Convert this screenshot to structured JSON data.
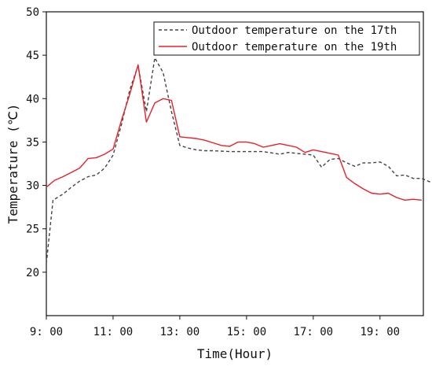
{
  "chart_data": {
    "type": "line",
    "xlabel": "Time(Hour)",
    "ylabel": "Temperature (℃)",
    "xlim": [
      9,
      20.3
    ],
    "ylim": [
      15,
      50
    ],
    "x_ticks": [
      {
        "value": 9,
        "label": "9: 00"
      },
      {
        "value": 11,
        "label": "11: 00"
      },
      {
        "value": 13,
        "label": "13: 00"
      },
      {
        "value": 15,
        "label": "15: 00"
      },
      {
        "value": 17,
        "label": "17: 00"
      },
      {
        "value": 19,
        "label": "19: 00"
      }
    ],
    "y_ticks": [
      20,
      25,
      30,
      35,
      40,
      45,
      50
    ],
    "legend_position": "top-right",
    "series": [
      {
        "name": "Outdoor temperature on the 17th",
        "color": "#444444",
        "dash": "dashed",
        "points": [
          [
            9.0,
            21.0
          ],
          [
            9.2,
            28.3
          ],
          [
            9.5,
            29.0
          ],
          [
            9.75,
            29.8
          ],
          [
            10.0,
            30.5
          ],
          [
            10.25,
            31.0
          ],
          [
            10.5,
            31.2
          ],
          [
            10.75,
            32.0
          ],
          [
            11.0,
            33.5
          ],
          [
            11.25,
            37.0
          ],
          [
            11.5,
            41.0
          ],
          [
            11.75,
            43.8
          ],
          [
            12.0,
            38.5
          ],
          [
            12.25,
            44.7
          ],
          [
            12.5,
            43.0
          ],
          [
            12.75,
            38.5
          ],
          [
            13.0,
            34.6
          ],
          [
            13.25,
            34.3
          ],
          [
            13.5,
            34.1
          ],
          [
            13.75,
            34.0
          ],
          [
            14.0,
            34.0
          ],
          [
            14.5,
            33.9
          ],
          [
            15.0,
            33.9
          ],
          [
            15.5,
            33.9
          ],
          [
            16.0,
            33.6
          ],
          [
            16.25,
            33.8
          ],
          [
            16.5,
            33.7
          ],
          [
            16.75,
            33.6
          ],
          [
            17.0,
            33.5
          ],
          [
            17.25,
            32.1
          ],
          [
            17.5,
            33.0
          ],
          [
            17.75,
            33.1
          ],
          [
            18.0,
            32.6
          ],
          [
            18.25,
            32.2
          ],
          [
            18.5,
            32.6
          ],
          [
            18.75,
            32.6
          ],
          [
            19.0,
            32.7
          ],
          [
            19.25,
            32.2
          ],
          [
            19.5,
            31.1
          ],
          [
            19.75,
            31.2
          ],
          [
            20.0,
            30.8
          ],
          [
            20.25,
            30.8
          ],
          [
            20.5,
            30.4
          ],
          [
            20.75,
            29.9
          ]
        ]
      },
      {
        "name": "Outdoor temperature on the 19th",
        "color": "#e8202a",
        "dash": "solid",
        "points": [
          [
            9.0,
            29.8
          ],
          [
            9.25,
            30.6
          ],
          [
            9.5,
            31.0
          ],
          [
            9.75,
            31.5
          ],
          [
            10.0,
            32.0
          ],
          [
            10.25,
            33.1
          ],
          [
            10.5,
            33.2
          ],
          [
            10.75,
            33.6
          ],
          [
            11.0,
            34.2
          ],
          [
            11.25,
            37.5
          ],
          [
            11.5,
            40.5
          ],
          [
            11.75,
            43.9
          ],
          [
            12.0,
            37.3
          ],
          [
            12.25,
            39.5
          ],
          [
            12.5,
            40.0
          ],
          [
            12.75,
            39.8
          ],
          [
            13.0,
            35.6
          ],
          [
            13.25,
            35.5
          ],
          [
            13.5,
            35.4
          ],
          [
            13.75,
            35.2
          ],
          [
            14.0,
            34.9
          ],
          [
            14.25,
            34.6
          ],
          [
            14.5,
            34.5
          ],
          [
            14.75,
            35.0
          ],
          [
            15.0,
            35.0
          ],
          [
            15.25,
            34.8
          ],
          [
            15.5,
            34.4
          ],
          [
            15.75,
            34.6
          ],
          [
            16.0,
            34.8
          ],
          [
            16.25,
            34.6
          ],
          [
            16.5,
            34.4
          ],
          [
            16.75,
            33.8
          ],
          [
            17.0,
            34.1
          ],
          [
            17.25,
            33.9
          ],
          [
            17.5,
            33.7
          ],
          [
            17.75,
            33.5
          ],
          [
            18.0,
            30.9
          ],
          [
            18.25,
            30.2
          ],
          [
            18.5,
            29.6
          ],
          [
            18.75,
            29.1
          ],
          [
            19.0,
            29.0
          ],
          [
            19.25,
            29.1
          ],
          [
            19.5,
            28.6
          ],
          [
            19.75,
            28.3
          ],
          [
            20.0,
            28.4
          ],
          [
            20.25,
            28.3
          ]
        ]
      }
    ]
  }
}
